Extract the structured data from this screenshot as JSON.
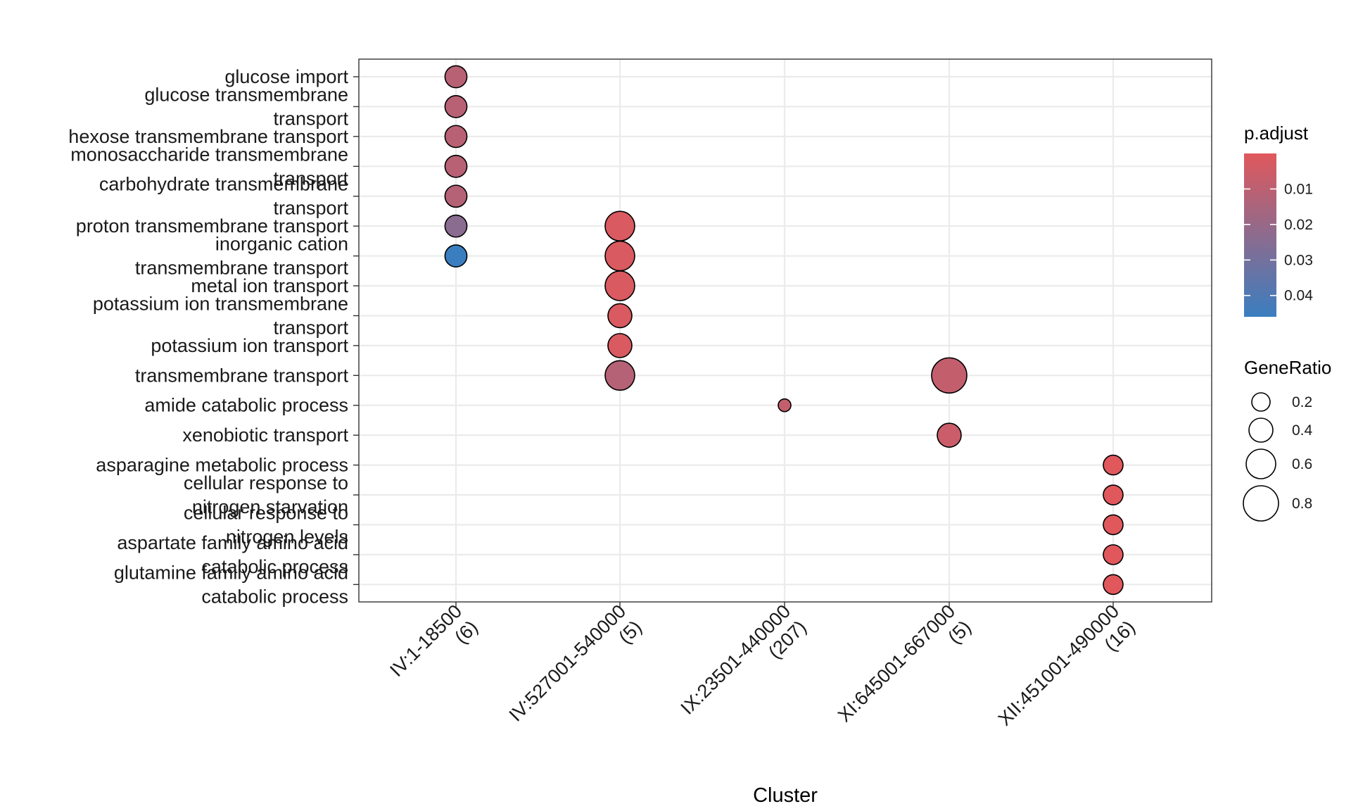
{
  "chart_data": {
    "type": "scatter",
    "xlabel": "Cluster",
    "ylabel": "",
    "grid": true,
    "legend_position": "right",
    "clusters": [
      [
        "IV:1-18500",
        "(6)"
      ],
      [
        "IV:527001-540000",
        "(5)"
      ],
      [
        "IX:23501-440000",
        "(207)"
      ],
      [
        "XI:645001-667000",
        "(5)"
      ],
      [
        "XII:451001-490000",
        "(16)"
      ]
    ],
    "terms": [
      [
        "glucose import"
      ],
      [
        "glucose transmembrane",
        "transport"
      ],
      [
        "hexose transmembrane transport"
      ],
      [
        "monosaccharide transmembrane",
        "transport"
      ],
      [
        "carbohydrate transmembrane",
        "transport"
      ],
      [
        "proton transmembrane transport"
      ],
      [
        "inorganic cation",
        "transmembrane transport"
      ],
      [
        "metal ion transport"
      ],
      [
        "potassium ion transmembrane",
        "transport"
      ],
      [
        "potassium ion transport"
      ],
      [
        "transmembrane transport"
      ],
      [
        "amide catabolic process"
      ],
      [
        "xenobiotic transport"
      ],
      [
        "asparagine metabolic process"
      ],
      [
        "cellular response to",
        "nitrogen starvation"
      ],
      [
        "cellular response to",
        "nitrogen levels"
      ],
      [
        "aspartate family amino acid",
        "catabolic process"
      ],
      [
        "glutamine family amino acid",
        "catabolic process"
      ]
    ],
    "points": [
      {
        "cluster": 0,
        "term": 0,
        "gene_ratio": 0.33,
        "p_adjust": 0.011
      },
      {
        "cluster": 0,
        "term": 1,
        "gene_ratio": 0.33,
        "p_adjust": 0.011
      },
      {
        "cluster": 0,
        "term": 2,
        "gene_ratio": 0.33,
        "p_adjust": 0.011
      },
      {
        "cluster": 0,
        "term": 3,
        "gene_ratio": 0.33,
        "p_adjust": 0.011
      },
      {
        "cluster": 0,
        "term": 4,
        "gene_ratio": 0.33,
        "p_adjust": 0.012
      },
      {
        "cluster": 0,
        "term": 5,
        "gene_ratio": 0.33,
        "p_adjust": 0.024
      },
      {
        "cluster": 0,
        "term": 6,
        "gene_ratio": 0.33,
        "p_adjust": 0.046
      },
      {
        "cluster": 1,
        "term": 5,
        "gene_ratio": 0.6,
        "p_adjust": 0.002
      },
      {
        "cluster": 1,
        "term": 6,
        "gene_ratio": 0.6,
        "p_adjust": 0.002
      },
      {
        "cluster": 1,
        "term": 7,
        "gene_ratio": 0.6,
        "p_adjust": 0.002
      },
      {
        "cluster": 1,
        "term": 8,
        "gene_ratio": 0.4,
        "p_adjust": 0.002
      },
      {
        "cluster": 1,
        "term": 9,
        "gene_ratio": 0.4,
        "p_adjust": 0.002
      },
      {
        "cluster": 1,
        "term": 10,
        "gene_ratio": 0.6,
        "p_adjust": 0.012
      },
      {
        "cluster": 2,
        "term": 11,
        "gene_ratio": 0.0,
        "p_adjust": 0.008
      },
      {
        "cluster": 3,
        "term": 10,
        "gene_ratio": 0.8,
        "p_adjust": 0.008
      },
      {
        "cluster": 3,
        "term": 12,
        "gene_ratio": 0.4,
        "p_adjust": 0.006
      },
      {
        "cluster": 4,
        "term": 13,
        "gene_ratio": 0.25,
        "p_adjust": 0.0
      },
      {
        "cluster": 4,
        "term": 14,
        "gene_ratio": 0.25,
        "p_adjust": 0.0
      },
      {
        "cluster": 4,
        "term": 15,
        "gene_ratio": 0.25,
        "p_adjust": 0.0
      },
      {
        "cluster": 4,
        "term": 16,
        "gene_ratio": 0.25,
        "p_adjust": 0.0
      },
      {
        "cluster": 4,
        "term": 17,
        "gene_ratio": 0.25,
        "p_adjust": 0.0
      }
    ],
    "color_legend": {
      "title": "p.adjust",
      "ticks": [
        "0.01",
        "0.02",
        "0.03",
        "0.04"
      ],
      "tick_values": [
        0.01,
        0.02,
        0.03,
        0.04
      ],
      "range": [
        0.0,
        0.046
      ],
      "low_color": "#E0585C",
      "high_color": "#3A7EC0"
    },
    "size_legend": {
      "title": "GeneRatio",
      "ticks": [
        "0.2",
        "0.4",
        "0.6",
        "0.8"
      ],
      "tick_values": [
        0.2,
        0.4,
        0.6,
        0.8
      ]
    }
  }
}
